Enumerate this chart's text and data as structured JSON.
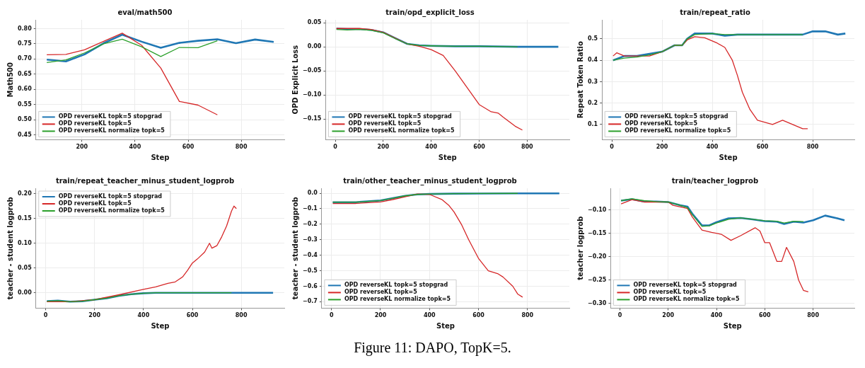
{
  "chart_data": [
    {
      "type": "line",
      "title": "eval/math500",
      "xlabel": "Step",
      "ylabel": "Math500",
      "xlim": [
        27,
        962
      ],
      "xticks": [
        200,
        400,
        600,
        800
      ],
      "ylim": [
        0.434,
        0.829
      ],
      "yticks": [
        {
          "value": 0.45,
          "label": "0.45"
        },
        {
          "value": 0.5,
          "label": "0.50"
        },
        {
          "value": 0.55,
          "label": "0.55"
        },
        {
          "value": 0.6,
          "label": "0.60"
        },
        {
          "value": 0.65,
          "label": "0.65"
        },
        {
          "value": 0.7,
          "label": "0.70"
        },
        {
          "value": 0.75,
          "label": "0.75"
        },
        {
          "value": 0.8,
          "label": "0.80"
        }
      ],
      "grid": true,
      "legend": "bottom left",
      "annotations": [
        "Figure 11: DAPO, TopK=5."
      ],
      "series": [
        {
          "name": "OPD reverseKL topk=5 stopgrad",
          "color": "#1f77b4",
          "x": [
            68,
            140,
            210,
            282,
            352,
            425,
            497,
            567,
            637,
            710,
            780,
            852,
            922
          ],
          "values": [
            0.698,
            0.692,
            0.715,
            0.752,
            0.78,
            0.757,
            0.737,
            0.753,
            0.76,
            0.765,
            0.752,
            0.764,
            0.756
          ]
        },
        {
          "name": "OPD reverseKL topk=5",
          "color": "#d62728",
          "x": [
            68,
            140,
            210,
            282,
            352,
            425,
            497,
            567,
            637,
            710
          ],
          "values": [
            0.714,
            0.715,
            0.73,
            0.758,
            0.785,
            0.745,
            0.67,
            0.56,
            0.548,
            0.516
          ]
        },
        {
          "name": "OPD reverseKL normalize topk=5",
          "color": "#2ca02c",
          "x": [
            68,
            140,
            210,
            282,
            352,
            425,
            497,
            567,
            637,
            710
          ],
          "values": [
            0.688,
            0.697,
            0.72,
            0.75,
            0.765,
            0.74,
            0.708,
            0.738,
            0.737,
            0.76
          ]
        }
      ]
    },
    {
      "type": "line",
      "title": "train/opd_explicit_loss",
      "xlabel": "Step",
      "ylabel": "OPD Explicit Loss",
      "xlim": [
        -40,
        976
      ],
      "xticks": [
        0,
        200,
        400,
        600,
        800
      ],
      "ylim": [
        -0.193,
        0.056
      ],
      "yticks": [
        {
          "value": -0.15,
          "label": "−0.15"
        },
        {
          "value": -0.1,
          "label": "−0.10"
        },
        {
          "value": -0.05,
          "label": "−0.05"
        },
        {
          "value": 0,
          "label": "0.00"
        },
        {
          "value": 0.05,
          "label": "0.05"
        }
      ],
      "grid": true,
      "legend": "bottom left",
      "series": [
        {
          "name": "OPD reverseKL topk=5 stopgrad",
          "color": "#1f77b4",
          "x": [
            5,
            50,
            100,
            150,
            200,
            250,
            300,
            350,
            400,
            500,
            600,
            760,
            930
          ],
          "values": [
            0.038,
            0.037,
            0.037,
            0.035,
            0.03,
            0.018,
            0.006,
            0.003,
            0.002,
            0.001,
            0.001,
            0,
            0
          ]
        },
        {
          "name": "OPD reverseKL topk=5",
          "color": "#d62728",
          "x": [
            5,
            100,
            150,
            200,
            250,
            300,
            350,
            400,
            450,
            500,
            550,
            600,
            650,
            680,
            700,
            750,
            780
          ],
          "values": [
            0.038,
            0.038,
            0.036,
            0.03,
            0.018,
            0.006,
            0.001,
            -0.006,
            -0.018,
            -0.05,
            -0.085,
            -0.12,
            -0.135,
            -0.138,
            -0.146,
            -0.165,
            -0.173
          ]
        },
        {
          "name": "OPD reverseKL normalize topk=5",
          "color": "#2ca02c",
          "x": [
            5,
            50,
            100,
            150,
            200,
            250,
            300,
            350,
            400,
            500,
            600,
            760
          ],
          "values": [
            0.036,
            0.035,
            0.036,
            0.034,
            0.029,
            0.017,
            0.006,
            0.003,
            0.002,
            0.001,
            0.001,
            0
          ]
        }
      ]
    },
    {
      "type": "line",
      "title": "train/repeat_ratio",
      "xlabel": "Step",
      "ylabel": "Repeat Token Ratio",
      "xlim": [
        -39,
        966
      ],
      "xticks": [
        0,
        200,
        400,
        600,
        800
      ],
      "ylim": [
        0.029,
        0.589
      ],
      "yticks": [
        0.1,
        0.2,
        0.3,
        0.4,
        0.5
      ],
      "grid": true,
      "legend": "bottom left",
      "series": [
        {
          "name": "OPD reverseKL topk=5 stopgrad",
          "color": "#1f77b4",
          "x": [
            5,
            50,
            100,
            150,
            200,
            250,
            280,
            300,
            330,
            400,
            450,
            500,
            600,
            700,
            760,
            800,
            850,
            900,
            930
          ],
          "values": [
            0.4,
            0.42,
            0.42,
            0.43,
            0.44,
            0.47,
            0.47,
            0.5,
            0.525,
            0.525,
            0.515,
            0.52,
            0.52,
            0.52,
            0.52,
            0.535,
            0.535,
            0.52,
            0.525
          ]
        },
        {
          "name": "OPD reverseKL topk=5",
          "color": "#d62728",
          "x": [
            5,
            20,
            50,
            100,
            150,
            200,
            250,
            280,
            300,
            330,
            370,
            420,
            450,
            480,
            500,
            520,
            550,
            580,
            640,
            680,
            720,
            760,
            780
          ],
          "values": [
            0.42,
            0.435,
            0.42,
            0.42,
            0.42,
            0.44,
            0.47,
            0.47,
            0.495,
            0.51,
            0.505,
            0.48,
            0.46,
            0.4,
            0.33,
            0.25,
            0.17,
            0.12,
            0.1,
            0.12,
            0.1,
            0.08,
            0.08
          ]
        },
        {
          "name": "OPD reverseKL normalize topk=5",
          "color": "#2ca02c",
          "x": [
            5,
            50,
            100,
            150,
            200,
            250,
            280,
            300,
            330,
            400,
            450,
            500,
            600,
            700,
            760
          ],
          "values": [
            0.4,
            0.41,
            0.415,
            0.425,
            0.44,
            0.47,
            0.47,
            0.5,
            0.52,
            0.525,
            0.52,
            0.52,
            0.52,
            0.52,
            0.52
          ]
        }
      ]
    },
    {
      "type": "line",
      "title": "train/repeat_teacher_minus_student_logprob",
      "xlabel": "Step",
      "ylabel": "teacher - student logprob",
      "xlim": [
        -40,
        976
      ],
      "xticks": [
        0,
        200,
        400,
        600,
        800
      ],
      "ylim": [
        -0.031,
        0.211
      ],
      "yticks": [
        {
          "value": 0,
          "label": "0.00"
        },
        {
          "value": 0.05,
          "label": "0.05"
        },
        {
          "value": 0.1,
          "label": "0.10"
        },
        {
          "value": 0.15,
          "label": "0.15"
        },
        {
          "value": 0.2,
          "label": "0.20"
        }
      ],
      "grid": true,
      "legend": "top left",
      "series": [
        {
          "name": "OPD reverseKL topk=5 stopgrad",
          "color": "#1f77b4",
          "x": [
            5,
            50,
            100,
            150,
            200,
            250,
            300,
            350,
            400,
            450,
            930
          ],
          "values": [
            -0.017,
            -0.016,
            -0.018,
            -0.017,
            -0.014,
            -0.011,
            -0.006,
            -0.003,
            -0.001,
            0,
            0
          ]
        },
        {
          "name": "OPD reverseKL topk=5",
          "color": "#d62728",
          "x": [
            5,
            100,
            200,
            300,
            400,
            450,
            500,
            530,
            560,
            580,
            600,
            620,
            650,
            670,
            680,
            700,
            720,
            740,
            760,
            770,
            780
          ],
          "values": [
            -0.018,
            -0.018,
            -0.014,
            -0.004,
            0.007,
            0.012,
            0.019,
            0.022,
            0.032,
            0.045,
            0.06,
            0.068,
            0.082,
            0.1,
            0.09,
            0.095,
            0.113,
            0.135,
            0.165,
            0.175,
            0.17
          ]
        },
        {
          "name": "OPD reverseKL normalize topk=5",
          "color": "#2ca02c",
          "x": [
            5,
            50,
            100,
            150,
            200,
            250,
            300,
            350,
            400,
            450,
            760
          ],
          "values": [
            -0.017,
            -0.016,
            -0.018,
            -0.017,
            -0.014,
            -0.011,
            -0.006,
            -0.003,
            -0.001,
            0,
            0
          ]
        }
      ]
    },
    {
      "type": "line",
      "title": "train/other_teacher_minus_student_logprob",
      "xlabel": "Step",
      "ylabel": "teacher - student logprob",
      "xlim": [
        -40,
        971
      ],
      "xticks": [
        0,
        200,
        400,
        600,
        800
      ],
      "ylim": [
        -0.741,
        0.032
      ],
      "yticks": [
        {
          "value": -0.7,
          "label": "−0.7"
        },
        {
          "value": -0.6,
          "label": "−0.6"
        },
        {
          "value": -0.5,
          "label": "−0.5"
        },
        {
          "value": -0.4,
          "label": "−0.4"
        },
        {
          "value": -0.3,
          "label": "−0.3"
        },
        {
          "value": -0.2,
          "label": "−0.2"
        },
        {
          "value": -0.1,
          "label": "−0.1"
        },
        {
          "value": 0,
          "label": "0.0"
        }
      ],
      "grid": true,
      "legend": "bottom left",
      "series": [
        {
          "name": "OPD reverseKL topk=5 stopgrad",
          "color": "#1f77b4",
          "x": [
            5,
            100,
            200,
            250,
            300,
            350,
            400,
            500,
            600,
            760,
            930
          ],
          "values": [
            -0.058,
            -0.058,
            -0.047,
            -0.032,
            -0.017,
            -0.008,
            -0.005,
            -0.003,
            -0.002,
            -0.001,
            -0.001
          ]
        },
        {
          "name": "OPD reverseKL topk=5",
          "color": "#d62728",
          "x": [
            5,
            100,
            200,
            250,
            300,
            350,
            400,
            450,
            480,
            500,
            530,
            560,
            600,
            640,
            680,
            700,
            740,
            760,
            780
          ],
          "values": [
            -0.067,
            -0.066,
            -0.056,
            -0.041,
            -0.023,
            -0.005,
            -0.008,
            -0.04,
            -0.08,
            -0.12,
            -0.2,
            -0.3,
            -0.42,
            -0.5,
            -0.52,
            -0.54,
            -0.6,
            -0.65,
            -0.67
          ]
        },
        {
          "name": "OPD reverseKL normalize topk=5",
          "color": "#2ca02c",
          "x": [
            5,
            100,
            200,
            250,
            300,
            350,
            400,
            500,
            600,
            760
          ],
          "values": [
            -0.058,
            -0.058,
            -0.047,
            -0.032,
            -0.017,
            -0.008,
            -0.005,
            -0.003,
            -0.002,
            -0.001
          ]
        }
      ]
    },
    {
      "type": "line",
      "title": "train/teacher_logprob",
      "xlabel": "Step",
      "ylabel": "teacher logprob",
      "xlim": [
        -38,
        971
      ],
      "xticks": [
        0,
        200,
        400,
        600,
        800
      ],
      "ylim": [
        -0.31,
        -0.0535
      ],
      "yticks": [
        {
          "value": -0.3,
          "label": "−0.30"
        },
        {
          "value": -0.25,
          "label": "−0.25"
        },
        {
          "value": -0.2,
          "label": "−0.20"
        },
        {
          "value": -0.15,
          "label": "−0.15"
        },
        {
          "value": -0.1,
          "label": "−0.10"
        }
      ],
      "grid": true,
      "legend": "bottom left",
      "series": [
        {
          "name": "OPD reverseKL topk=5 stopgrad",
          "color": "#1f77b4",
          "x": [
            5,
            50,
            100,
            150,
            200,
            250,
            280,
            300,
            340,
            370,
            400,
            450,
            500,
            550,
            600,
            650,
            680,
            720,
            760,
            800,
            850,
            900,
            930
          ],
          "values": [
            -0.08,
            -0.077,
            -0.082,
            -0.082,
            -0.083,
            -0.09,
            -0.093,
            -0.108,
            -0.133,
            -0.133,
            -0.126,
            -0.118,
            -0.117,
            -0.12,
            -0.124,
            -0.125,
            -0.13,
            -0.125,
            -0.127,
            -0.122,
            -0.112,
            -0.118,
            -0.122
          ]
        },
        {
          "name": "OPD reverseKL topk=5",
          "color": "#d62728",
          "x": [
            5,
            50,
            100,
            200,
            220,
            280,
            300,
            340,
            380,
            420,
            460,
            500,
            560,
            580,
            600,
            620,
            650,
            670,
            690,
            720,
            740,
            760,
            780
          ],
          "values": [
            -0.087,
            -0.078,
            -0.083,
            -0.083,
            -0.09,
            -0.097,
            -0.115,
            -0.143,
            -0.148,
            -0.152,
            -0.165,
            -0.155,
            -0.138,
            -0.145,
            -0.17,
            -0.17,
            -0.21,
            -0.21,
            -0.18,
            -0.21,
            -0.25,
            -0.272,
            -0.275
          ]
        },
        {
          "name": "OPD reverseKL normalize topk=5",
          "color": "#2ca02c",
          "x": [
            5,
            50,
            100,
            150,
            200,
            250,
            280,
            300,
            340,
            370,
            400,
            450,
            500,
            550,
            600,
            650,
            680,
            720,
            760
          ],
          "values": [
            -0.08,
            -0.076,
            -0.08,
            -0.082,
            -0.083,
            -0.09,
            -0.095,
            -0.11,
            -0.135,
            -0.134,
            -0.128,
            -0.12,
            -0.117,
            -0.12,
            -0.123,
            -0.124,
            -0.128,
            -0.124,
            -0.125
          ]
        }
      ]
    }
  ]
}
